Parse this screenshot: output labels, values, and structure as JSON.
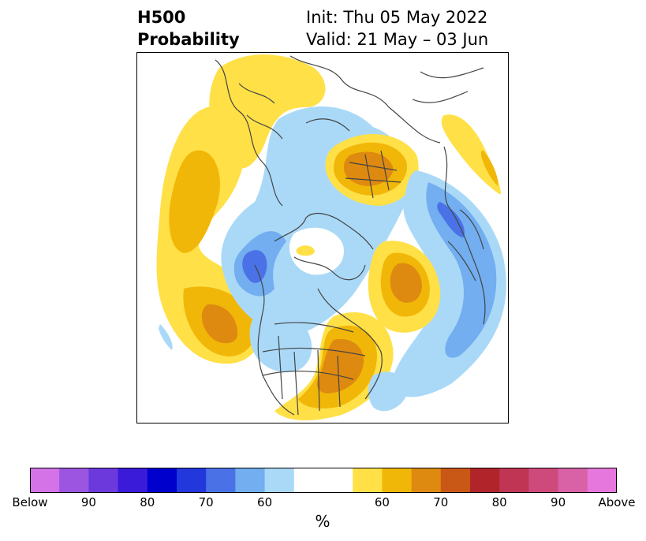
{
  "title": {
    "left_line1": "H500",
    "left_line2": "Probability",
    "init": "Init: Thu 05 May 2022",
    "valid": "Valid: 21 May – 03 Jun"
  },
  "colorbar": {
    "colors": [
      "#d473e8",
      "#9b55e0",
      "#6b39dc",
      "#3a1bd9",
      "#0000cc",
      "#2338dc",
      "#4a72e6",
      "#72aef0",
      "#aad9f8",
      "#ffffff",
      "#ffffff",
      "#ffe047",
      "#f1b708",
      "#de8a10",
      "#c95816",
      "#b1242a",
      "#bf3553",
      "#cd4a7b",
      "#d962a7",
      "#e677dc"
    ],
    "labels": [
      "Below",
      "90",
      "80",
      "70",
      "60",
      "",
      "60",
      "70",
      "80",
      "90",
      "Above"
    ],
    "unit": "%"
  },
  "map": {
    "projection": "north-polar-stereographic",
    "colors": {
      "light_yellow": "#ffe047",
      "gold": "#f1b708",
      "orange": "#de8a10",
      "light_blue": "#aad9f8",
      "mid_blue": "#72aef0",
      "blue": "#4a72e6",
      "coast": "#444444"
    }
  }
}
